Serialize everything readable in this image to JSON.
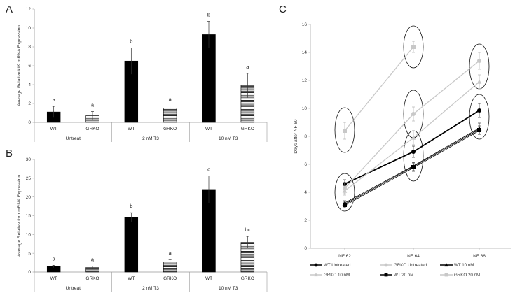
{
  "panel_labels": {
    "a": "A",
    "b": "B",
    "c": "C"
  },
  "chart_data": [
    {
      "id": "A",
      "type": "bar",
      "ylabel": "Average Relative klf9 mRNA Expression",
      "ylim": [
        0,
        12
      ],
      "yticks": [
        0,
        2,
        4,
        6,
        8,
        10,
        12
      ],
      "groups": [
        "Untreat",
        "2 nM T3",
        "10 nM T3"
      ],
      "categories": [
        "WT",
        "GRKO",
        "WT",
        "GRKO",
        "WT",
        "GRKO"
      ],
      "bar_style": [
        "solid",
        "hatched",
        "solid",
        "hatched",
        "solid",
        "hatched"
      ],
      "values": [
        1.1,
        0.7,
        6.5,
        1.5,
        9.3,
        3.9
      ],
      "errors": [
        0.6,
        0.45,
        1.4,
        0.25,
        1.4,
        1.3
      ],
      "letters": [
        "a",
        "a",
        "b",
        "a",
        "b",
        "a"
      ]
    },
    {
      "id": "B",
      "type": "bar",
      "ylabel": "Average Relative thrb mRNA Expression",
      "ylim": [
        0,
        30
      ],
      "yticks": [
        0,
        5,
        10,
        15,
        20,
        25,
        30
      ],
      "groups": [
        "Untreat",
        "2 nM T3",
        "10 nM T3"
      ],
      "categories": [
        "WT",
        "GRKO",
        "WT",
        "GRKO",
        "WT",
        "GRKO"
      ],
      "bar_style": [
        "solid",
        "hatched",
        "solid",
        "hatched",
        "solid",
        "hatched"
      ],
      "values": [
        1.5,
        1.2,
        14.6,
        2.7,
        22.0,
        7.9
      ],
      "errors": [
        0.3,
        0.4,
        1.2,
        0.6,
        3.6,
        1.6
      ],
      "letters": [
        "a",
        "a",
        "b",
        "a",
        "c",
        "bc"
      ]
    },
    {
      "id": "C",
      "type": "line",
      "ylabel": "Days after NF 60",
      "ylim": [
        0,
        16
      ],
      "yticks": [
        0,
        2,
        4,
        6,
        8,
        10,
        12,
        14,
        16
      ],
      "categories": [
        "NF 62",
        "NF 64",
        "NF 66"
      ],
      "series": [
        {
          "name": "WT Untreated",
          "values": [
            4.6,
            6.9,
            9.85
          ],
          "errors": [
            0.3,
            0.4,
            0.5
          ],
          "color": "#000000",
          "marker": "circle",
          "width": 1.8
        },
        {
          "name": "GRKO Untreated",
          "values": [
            4.3,
            9.6,
            13.4
          ],
          "errors": [
            0.4,
            0.5,
            0.6
          ],
          "color": "#c8c8c8",
          "marker": "circle",
          "width": 1.3
        },
        {
          "name": "WT 10 nM",
          "values": [
            3.2,
            5.85,
            8.55
          ],
          "errors": [
            0.2,
            0.3,
            0.4
          ],
          "color": "#000000",
          "marker": "triangle",
          "width": 0.8
        },
        {
          "name": "GRKO 10 nM",
          "values": [
            4.1,
            7.9,
            11.9
          ],
          "errors": [
            0.3,
            0.5,
            0.5
          ],
          "color": "#c8c8c8",
          "marker": "triangle",
          "width": 1.3
        },
        {
          "name": "WT 20 nM",
          "values": [
            3.1,
            5.8,
            8.45
          ],
          "errors": [
            0.2,
            0.3,
            0.3
          ],
          "color": "#000000",
          "marker": "square",
          "width": 0.8
        },
        {
          "name": "GRKO 20 nM",
          "values": [
            8.4,
            14.4,
            null
          ],
          "errors": [
            0.6,
            0.4,
            null
          ],
          "color": "#c8c8c8",
          "marker": "square",
          "width": 1.3
        }
      ],
      "ellipses": [
        {
          "x": "NF 62",
          "y": 8.45,
          "ry": 1.6
        },
        {
          "x": "NF 62",
          "y": 4.0,
          "ry": 1.35
        },
        {
          "x": "NF 64",
          "y": 14.4,
          "ry": 1.5
        },
        {
          "x": "NF 64",
          "y": 9.6,
          "ry": 1.7
        },
        {
          "x": "NF 64",
          "y": 6.6,
          "ry": 1.8
        },
        {
          "x": "NF 66",
          "y": 13.0,
          "ry": 1.6
        },
        {
          "x": "NF 66",
          "y": 9.4,
          "ry": 1.6
        }
      ],
      "legend_position": "bottom"
    }
  ]
}
